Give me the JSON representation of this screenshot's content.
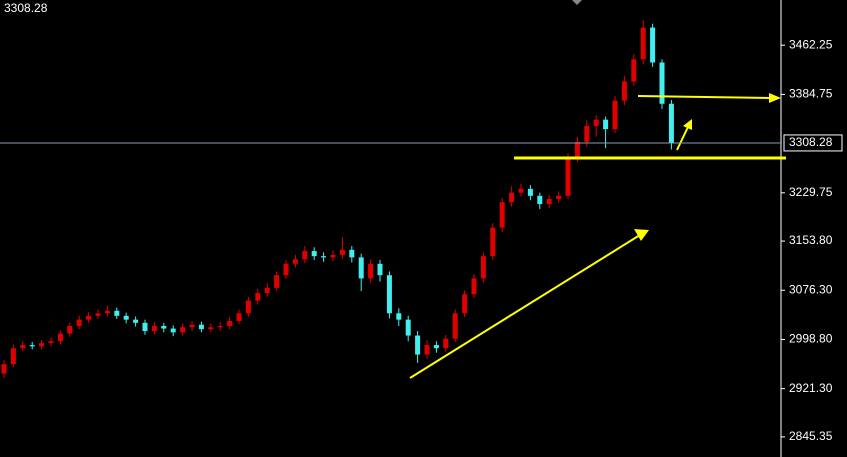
{
  "chart_data": {
    "type": "candlestick",
    "last": 3308.28,
    "up_color": "#e00000",
    "down_color": "#40f0f0",
    "last_line_color": "#8a9bb0",
    "ylim": [
      2813.7,
      3533.4
    ],
    "yticks": [
      2845.35,
      {
        "value": 2921.3,
        "label": "2921.30"
      },
      {
        "value": 2998.8,
        "label": "2998.80"
      },
      {
        "value": 3076.3,
        "label": "3076.30"
      },
      {
        "value": 3153.8,
        "label": "3153.80"
      },
      3229.75,
      3384.75,
      3462.25
    ],
    "open": [
      2945,
      2960,
      2985,
      2990,
      2988,
      2993,
      2996,
      3008,
      3020,
      3030,
      3036,
      3040,
      3044,
      3036,
      3030,
      3025,
      3012,
      3020,
      3016,
      3010,
      3018,
      3022,
      3015,
      3018,
      3020,
      3028,
      3040,
      3060,
      3072,
      3080,
      3100,
      3118,
      3125,
      3138,
      3130,
      3128,
      3132,
      3140,
      3128,
      3095,
      3118,
      3100,
      3040,
      3030,
      3005,
      2975,
      2990,
      2985,
      3000,
      3040,
      3070,
      3095,
      3130,
      3175,
      3215,
      3230,
      3236,
      3225,
      3212,
      3220,
      3225,
      3285,
      3310,
      3335,
      3345,
      3330,
      3375,
      3405,
      3440,
      3490,
      3435,
      3370
    ],
    "high": [
      2966,
      2991,
      2996,
      2995,
      2998,
      3002,
      3013,
      3025,
      3036,
      3042,
      3046,
      3052,
      3049,
      3041,
      3035,
      3030,
      3026,
      3025,
      3021,
      3024,
      3028,
      3027,
      3024,
      3026,
      3034,
      3046,
      3066,
      3079,
      3088,
      3106,
      3124,
      3132,
      3146,
      3144,
      3136,
      3139,
      3160,
      3146,
      3134,
      3125,
      3124,
      3106,
      3048,
      3036,
      3012,
      2998,
      2996,
      3006,
      3046,
      3076,
      3102,
      3136,
      3182,
      3222,
      3240,
      3244,
      3242,
      3230,
      3226,
      3232,
      3292,
      3318,
      3344,
      3352,
      3350,
      3382,
      3414,
      3448,
      3502,
      3496,
      3440,
      3376
    ],
    "low": [
      2938,
      2955,
      2980,
      2983,
      2983,
      2988,
      2991,
      3003,
      3015,
      3025,
      3031,
      3035,
      3031,
      3024,
      3019,
      3006,
      3007,
      3010,
      3004,
      3005,
      3012,
      3010,
      3010,
      3012,
      3015,
      3023,
      3035,
      3054,
      3066,
      3075,
      3094,
      3112,
      3119,
      3124,
      3121,
      3122,
      3126,
      3120,
      3075,
      3088,
      3090,
      3032,
      3020,
      2996,
      2962,
      2968,
      2978,
      2979,
      2995,
      3034,
      3064,
      3088,
      3124,
      3168,
      3208,
      3224,
      3218,
      3204,
      3206,
      3214,
      3220,
      3278,
      3302,
      3318,
      3300,
      3324,
      3368,
      3398,
      3432,
      3428,
      3362,
      3298
    ],
    "close": [
      2960,
      2985,
      2990,
      2988,
      2993,
      2996,
      3008,
      3020,
      3030,
      3036,
      3040,
      3044,
      3036,
      3030,
      3025,
      3012,
      3020,
      3016,
      3010,
      3018,
      3022,
      3015,
      3018,
      3020,
      3028,
      3040,
      3060,
      3072,
      3080,
      3100,
      3118,
      3125,
      3138,
      3130,
      3128,
      3132,
      3140,
      3128,
      3095,
      3118,
      3100,
      3040,
      3030,
      3005,
      2975,
      2990,
      2985,
      3000,
      3040,
      3070,
      3095,
      3130,
      3175,
      3215,
      3230,
      3236,
      3225,
      3212,
      3220,
      3225,
      3285,
      3310,
      3335,
      3345,
      3330,
      3375,
      3405,
      3440,
      3490,
      3435,
      3370,
      3308.28
    ]
  }
}
